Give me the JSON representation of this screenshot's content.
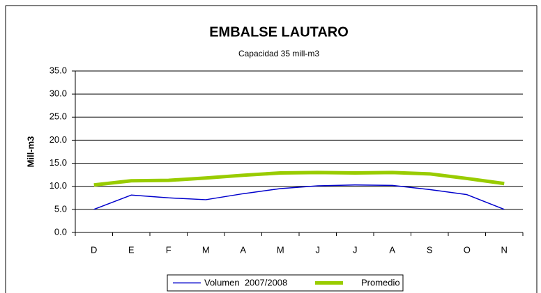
{
  "chart_data": {
    "type": "line",
    "title": "EMBALSE LAUTARO",
    "subtitle": "Capacidad 35 mill-m3",
    "y_label": "Mill-m3",
    "categories": [
      "D",
      "E",
      "F",
      "M",
      "A",
      "M",
      "J",
      "J",
      "A",
      "S",
      "O",
      "N"
    ],
    "series": [
      {
        "name": "Volumen  2007/2008",
        "color": "#0000cc",
        "width": 1.5,
        "values": [
          5.0,
          8.1,
          7.5,
          7.1,
          8.4,
          9.5,
          10.1,
          10.3,
          10.2,
          9.3,
          8.2,
          5.0
        ]
      },
      {
        "name": "Promedio",
        "color": "#99cc00",
        "width": 5,
        "values": [
          10.3,
          11.2,
          11.3,
          11.8,
          12.4,
          12.9,
          13.0,
          12.9,
          13.0,
          12.7,
          11.7,
          10.6
        ]
      }
    ],
    "ylim": [
      0,
      35
    ],
    "yticks": [
      {
        "value": 0,
        "label": "0.0"
      },
      {
        "value": 5,
        "label": "5.0"
      },
      {
        "value": 10,
        "label": "10.0"
      },
      {
        "value": 15,
        "label": "15.0"
      },
      {
        "value": 20,
        "label": "20.0"
      },
      {
        "value": 25,
        "label": "25.0"
      },
      {
        "value": 30,
        "label": "30.0"
      },
      {
        "value": 35,
        "label": "35.0"
      }
    ],
    "grid": true
  }
}
